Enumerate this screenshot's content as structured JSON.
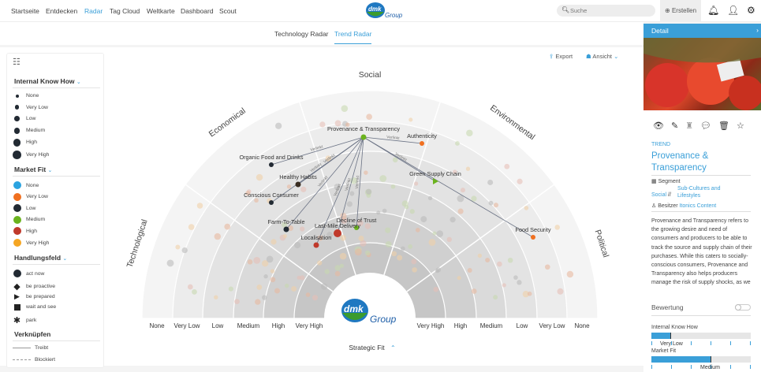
{
  "nav": {
    "items": [
      "Startseite",
      "Entdecken",
      "Radar",
      "Tag Cloud",
      "Weltkarte",
      "Dashboard",
      "Scout"
    ],
    "active": "Radar",
    "search_placeholder": "Suche",
    "create_label": "Erstellen",
    "logo_text": "dmk Group"
  },
  "tabs": {
    "items": [
      "Technology Radar",
      "Trend Radar"
    ],
    "active": "Trend Radar"
  },
  "toolbar": {
    "export": "Export",
    "view": "Ansicht"
  },
  "legend": {
    "internal_know_how": {
      "title": "Internal Know How",
      "items": [
        "None",
        "Very Low",
        "Low",
        "Medium",
        "High",
        "Very High"
      ]
    },
    "market_fit": {
      "title": "Market Fit",
      "items": [
        {
          "label": "None",
          "color": "#2ba3e0"
        },
        {
          "label": "Very Low",
          "color": "#f07020"
        },
        {
          "label": "Low",
          "color": "#222a33"
        },
        {
          "label": "Medium",
          "color": "#6bb31e"
        },
        {
          "label": "High",
          "color": "#c0392b"
        },
        {
          "label": "Very High",
          "color": "#f5a623"
        }
      ]
    },
    "handlungsfeld": {
      "title": "Handlungsfeld",
      "items": [
        {
          "label": "act now",
          "shape": "circle"
        },
        {
          "label": "be proactive",
          "shape": "diamond"
        },
        {
          "label": "be prepared",
          "shape": "triangle"
        },
        {
          "label": "wait and see",
          "shape": "square"
        },
        {
          "label": "park",
          "shape": "star"
        }
      ]
    },
    "verknuepfen": {
      "title": "Verknüpfen",
      "items": [
        {
          "label": "Treibt",
          "line": "solid"
        },
        {
          "label": "Blockiert",
          "line": "dashed"
        }
      ]
    }
  },
  "radar": {
    "sectors": [
      "Technological",
      "Economical",
      "Social",
      "Environmental",
      "Political"
    ],
    "rings_left": [
      "None",
      "Very Low",
      "Low",
      "Medium",
      "High",
      "Very High"
    ],
    "rings_right": [
      "Very High",
      "High",
      "Medium",
      "Low",
      "Very Low",
      "None"
    ],
    "axis_label": "Strategic Fit",
    "link_label": "Verlinkt",
    "trends": [
      {
        "name": "Provenance & Transparency",
        "color": "#6bb31e",
        "shape": "circle"
      },
      {
        "name": "Authenticity",
        "color": "#f07020",
        "shape": "circle"
      },
      {
        "name": "Green Supply Chain",
        "color": "#6bb31e",
        "shape": "triangle"
      },
      {
        "name": "Food Security",
        "color": "#f07020",
        "shape": "circle"
      },
      {
        "name": "Organic Food and Drinks",
        "color": "#222a33",
        "shape": "circle"
      },
      {
        "name": "Healthy Habits",
        "color": "#3a2e22",
        "shape": "circle"
      },
      {
        "name": "Conscious Consumer",
        "color": "#222a33",
        "shape": "circle"
      },
      {
        "name": "Farm-To-Table",
        "color": "#222a33",
        "shape": "circle"
      },
      {
        "name": "Decline of Trust",
        "color": "#6bb31e",
        "shape": "circle"
      },
      {
        "name": "Last-Mile Delivery",
        "color": "#c0392b",
        "shape": "circle"
      },
      {
        "name": "Localisation",
        "color": "#c0392b",
        "shape": "circle"
      }
    ]
  },
  "detail": {
    "header": "Detail",
    "type": "TREND",
    "title": "Provenance & Transparency",
    "segment_label": "Segment",
    "segment_a": "Social",
    "segment_sep": "//",
    "segment_b": "Sub-Cultures and Lifestyles",
    "owner_label": "Besitzer",
    "owner": "Itonics Content",
    "description": "Provenance and Transparency refers to the growing desire and need of consumers and producers to be able to track the source and supply chain of their purchases. While this caters to socially-conscious consumers, Provenance and Transparency also helps producers manage the risk of supply shocks, as we",
    "rating_label": "Bewertung",
    "ikh_label": "Internal Know How",
    "ikh_value": "Very Low",
    "ikh_fill_pct": 20,
    "mf_label": "Market Fit",
    "mf_value": "Medium",
    "mf_fill_pct": 60
  }
}
